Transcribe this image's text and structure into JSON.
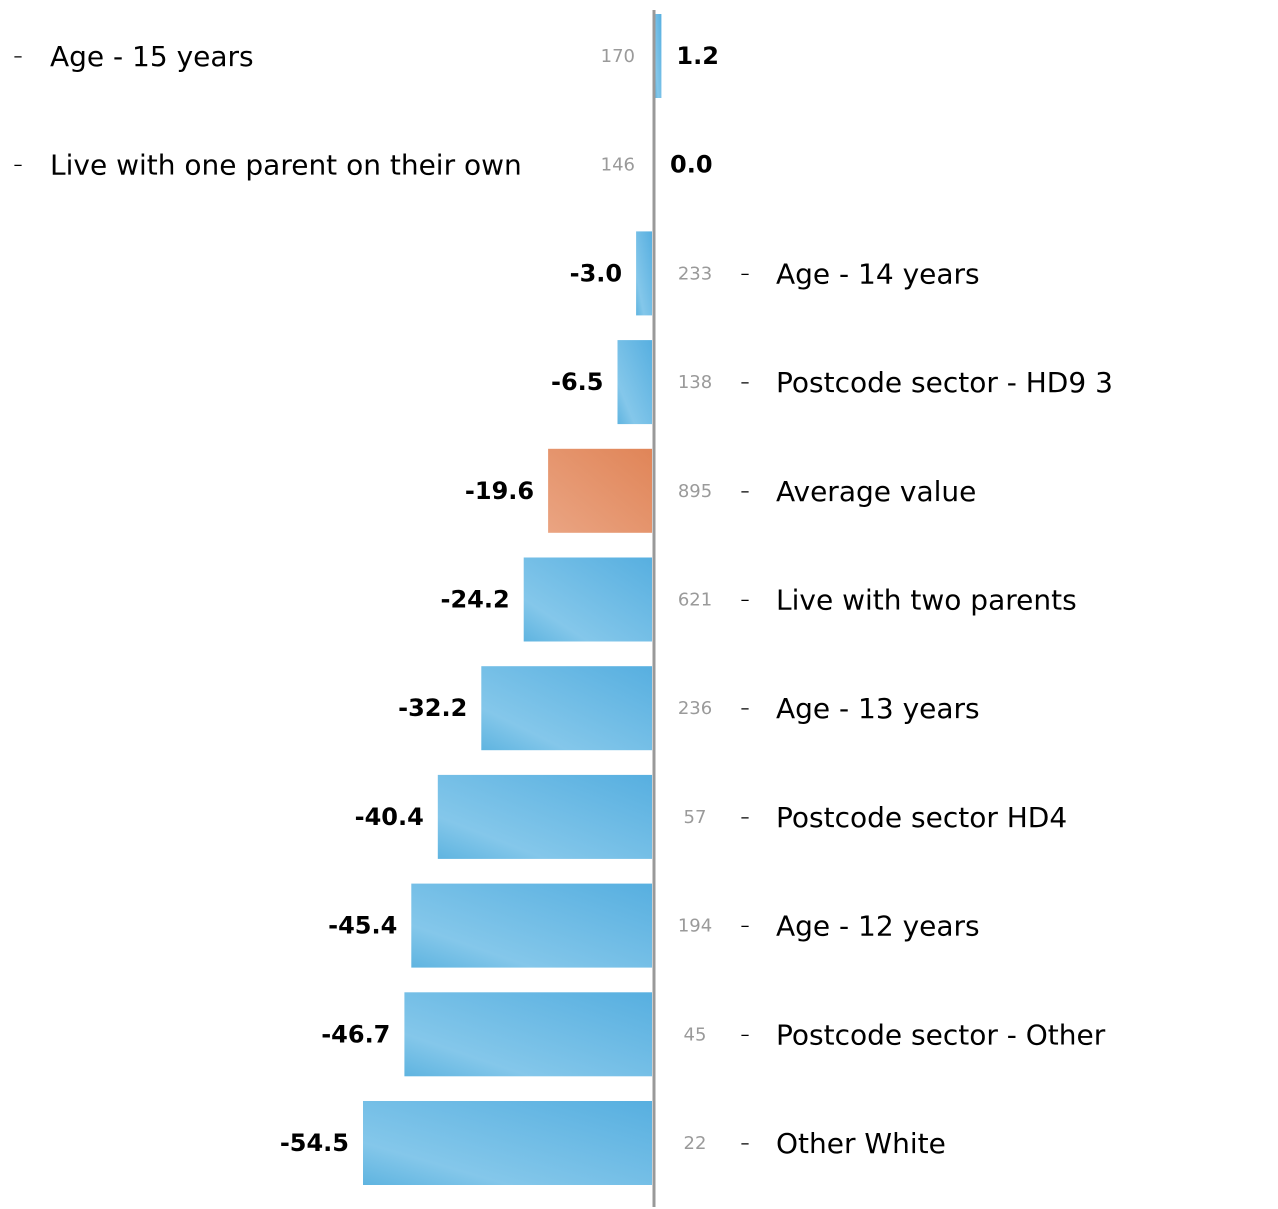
{
  "chart_data": {
    "type": "bar",
    "orientation": "horizontal",
    "categories": [
      "Age - 15 years",
      "Live with one parent on their own",
      "Age - 14 years",
      "Postcode sector - HD9 3",
      "Average value",
      "Live with two parents",
      "Age - 13 years",
      "Postcode sector HD4",
      "Age - 12 years",
      "Postcode sector - Other",
      "Other White"
    ],
    "values": [
      1.2,
      0.0,
      -3.0,
      -6.5,
      -19.6,
      -24.2,
      -32.2,
      -40.4,
      -45.4,
      -46.7,
      -54.5
    ],
    "value_labels": [
      "1.2",
      "0.0",
      "-3.0",
      "-6.5",
      "-19.6",
      "-24.2",
      "-32.2",
      "-40.4",
      "-45.4",
      "-46.7",
      "-54.5"
    ],
    "counts": [
      "170",
      "146",
      "233",
      "138",
      "895",
      "621",
      "236",
      "57",
      "194",
      "45",
      "22"
    ],
    "highlight_category": "Average value",
    "colors": {
      "bar": "#6bbde6",
      "highlight": "#e59266",
      "axis": "#999999"
    },
    "title": "",
    "xlabel": "",
    "ylabel": "",
    "xlim": [
      -54.5,
      1.2
    ],
    "grid": false,
    "legend": "none"
  }
}
